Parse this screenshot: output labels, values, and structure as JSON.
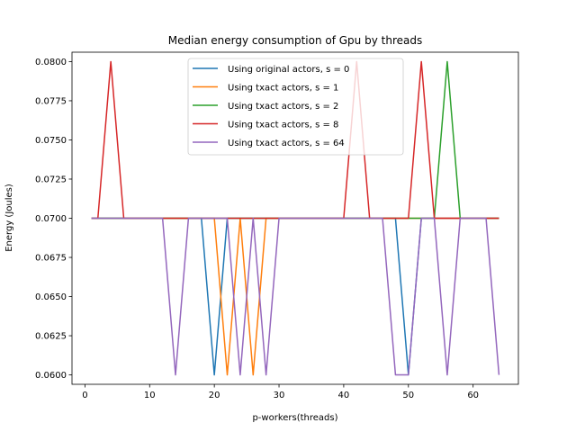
{
  "chart_data": {
    "type": "line",
    "title": "Median energy consumption of Gpu by threads",
    "xlabel": "p-workers(threads)",
    "ylabel": "Energy (Joules)",
    "xlim": [
      -2,
      67
    ],
    "ylim": [
      0.0594,
      0.0806
    ],
    "xticks": [
      0,
      10,
      20,
      30,
      40,
      50,
      60
    ],
    "yticks": [
      0.06,
      0.0625,
      0.065,
      0.0675,
      0.07,
      0.0725,
      0.075,
      0.0775,
      0.08
    ],
    "ytick_labels": [
      "0.0600",
      "0.0625",
      "0.0650",
      "0.0675",
      "0.0700",
      "0.0725",
      "0.0750",
      "0.0775",
      "0.0800"
    ],
    "grid": false,
    "legend_position": "top-center",
    "series": [
      {
        "name": "Using original actors, s = 0",
        "color": "#1f77b4",
        "x": [
          1,
          2,
          4,
          6,
          8,
          10,
          12,
          14,
          16,
          18,
          20,
          22,
          24,
          26,
          28,
          30,
          32,
          34,
          36,
          38,
          40,
          42,
          44,
          46,
          48,
          50,
          52,
          54,
          56,
          58,
          60,
          62,
          64
        ],
        "y": [
          0.07,
          0.07,
          0.07,
          0.07,
          0.07,
          0.07,
          0.07,
          0.07,
          0.07,
          0.07,
          0.06,
          0.07,
          0.07,
          0.07,
          0.07,
          0.07,
          0.07,
          0.07,
          0.07,
          0.07,
          0.07,
          0.07,
          0.07,
          0.07,
          0.07,
          0.06,
          0.07,
          0.07,
          0.07,
          0.07,
          0.07,
          0.07,
          0.07
        ]
      },
      {
        "name": "Using txact actors, s = 1",
        "color": "#ff7f0e",
        "x": [
          1,
          2,
          4,
          6,
          8,
          10,
          12,
          14,
          16,
          18,
          20,
          22,
          24,
          26,
          28,
          30,
          32,
          34,
          36,
          38,
          40,
          42,
          44,
          46,
          48,
          50,
          52,
          54,
          56,
          58,
          60,
          62,
          64
        ],
        "y": [
          0.07,
          0.07,
          0.07,
          0.07,
          0.07,
          0.07,
          0.07,
          0.07,
          0.07,
          0.07,
          0.07,
          0.06,
          0.07,
          0.06,
          0.07,
          0.07,
          0.07,
          0.07,
          0.07,
          0.07,
          0.07,
          0.07,
          0.07,
          0.07,
          0.07,
          0.07,
          0.07,
          0.07,
          0.07,
          0.07,
          0.07,
          0.07,
          0.07
        ]
      },
      {
        "name": "Using txact actors, s = 2",
        "color": "#2ca02c",
        "x": [
          1,
          2,
          4,
          6,
          8,
          10,
          12,
          14,
          16,
          18,
          20,
          22,
          24,
          26,
          28,
          30,
          32,
          34,
          36,
          38,
          40,
          42,
          44,
          46,
          48,
          50,
          52,
          54,
          56,
          58,
          60,
          62,
          64
        ],
        "y": [
          0.07,
          0.07,
          0.07,
          0.07,
          0.07,
          0.07,
          0.07,
          0.07,
          0.07,
          0.07,
          0.07,
          0.07,
          0.07,
          0.07,
          0.07,
          0.07,
          0.07,
          0.07,
          0.07,
          0.07,
          0.07,
          0.07,
          0.07,
          0.07,
          0.07,
          0.07,
          0.07,
          0.07,
          0.08,
          0.07,
          0.07,
          0.07,
          0.07
        ]
      },
      {
        "name": "Using txact actors, s = 8",
        "color": "#d62728",
        "x": [
          1,
          2,
          4,
          6,
          8,
          10,
          12,
          14,
          16,
          18,
          20,
          22,
          24,
          26,
          28,
          30,
          32,
          34,
          36,
          38,
          40,
          42,
          44,
          46,
          48,
          50,
          52,
          54,
          56,
          58,
          60,
          62,
          64
        ],
        "y": [
          0.07,
          0.07,
          0.08,
          0.07,
          0.07,
          0.07,
          0.07,
          0.07,
          0.07,
          0.07,
          0.07,
          0.07,
          0.07,
          0.07,
          0.07,
          0.07,
          0.07,
          0.07,
          0.07,
          0.07,
          0.07,
          0.08,
          0.07,
          0.07,
          0.07,
          0.07,
          0.08,
          0.07,
          0.07,
          0.07,
          0.07,
          0.07,
          0.07
        ]
      },
      {
        "name": "Using txact actors, s = 64",
        "color": "#9467bd",
        "x": [
          1,
          2,
          4,
          6,
          8,
          10,
          12,
          14,
          16,
          18,
          20,
          22,
          24,
          26,
          28,
          30,
          32,
          34,
          36,
          38,
          40,
          42,
          44,
          46,
          48,
          50,
          52,
          54,
          56,
          58,
          60,
          62,
          64
        ],
        "y": [
          0.07,
          0.07,
          0.07,
          0.07,
          0.07,
          0.07,
          0.07,
          0.06,
          0.07,
          0.07,
          0.07,
          0.07,
          0.06,
          0.07,
          0.06,
          0.07,
          0.07,
          0.07,
          0.07,
          0.07,
          0.07,
          0.07,
          0.07,
          0.07,
          0.06,
          0.06,
          0.07,
          0.07,
          0.06,
          0.07,
          0.07,
          0.07,
          0.06
        ]
      }
    ]
  }
}
